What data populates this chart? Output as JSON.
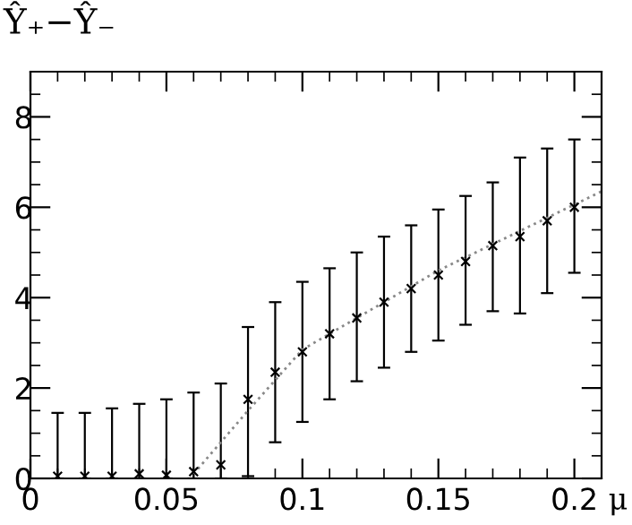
{
  "chart_data": {
    "type": "scatter",
    "ylabel": "Ŷ₊−Ŷ₋",
    "xlabel": "μ",
    "x": [
      0.01,
      0.02,
      0.03,
      0.04,
      0.05,
      0.06,
      0.07,
      0.08,
      0.09,
      0.1,
      0.11,
      0.12,
      0.13,
      0.14,
      0.15,
      0.16,
      0.17,
      0.18,
      0.19,
      0.2
    ],
    "series": [
      {
        "color": "#000000",
        "marker": "cross",
        "values": [
          0.05,
          0.05,
          0.05,
          0.1,
          0.07,
          0.15,
          0.3,
          1.75,
          2.35,
          2.8,
          3.2,
          3.55,
          3.9,
          4.2,
          4.5,
          4.8,
          5.15,
          5.35,
          5.7,
          6.0
        ],
        "errors": [
          [
            0,
            1.45
          ],
          [
            0,
            1.45
          ],
          [
            0,
            1.55
          ],
          [
            0,
            1.65
          ],
          [
            0,
            1.75
          ],
          [
            0,
            1.9
          ],
          [
            0,
            2.1
          ],
          [
            0.05,
            3.35
          ],
          [
            0.8,
            3.9
          ],
          [
            1.25,
            4.35
          ],
          [
            1.75,
            4.65
          ],
          [
            2.15,
            5.0
          ],
          [
            2.45,
            5.35
          ],
          [
            2.8,
            5.6
          ],
          [
            3.05,
            5.95
          ],
          [
            3.4,
            6.25
          ],
          [
            3.7,
            6.55
          ],
          [
            3.65,
            7.1
          ],
          [
            4.1,
            7.3
          ],
          [
            4.55,
            7.5
          ]
        ]
      },
      {
        "type": "line",
        "color": "#888888",
        "line_style": "dotted",
        "marker": "none",
        "x": [
          0.06,
          0.08,
          0.1,
          0.15,
          0.21
        ],
        "values": [
          0.1,
          1.5,
          2.85,
          4.6,
          6.35
        ]
      }
    ],
    "xlim": [
      0,
      0.21
    ],
    "ylim": [
      0,
      9
    ],
    "xticks": [
      {
        "value": 0,
        "label": "0"
      },
      {
        "value": 0.05,
        "label": "0.05"
      },
      {
        "value": 0.1,
        "label": "0.1"
      },
      {
        "value": 0.15,
        "label": "0.15"
      },
      {
        "value": 0.2,
        "label": "0.2"
      }
    ],
    "yticks": [
      0,
      2,
      4,
      6,
      8
    ],
    "grid": false,
    "legend": false
  }
}
